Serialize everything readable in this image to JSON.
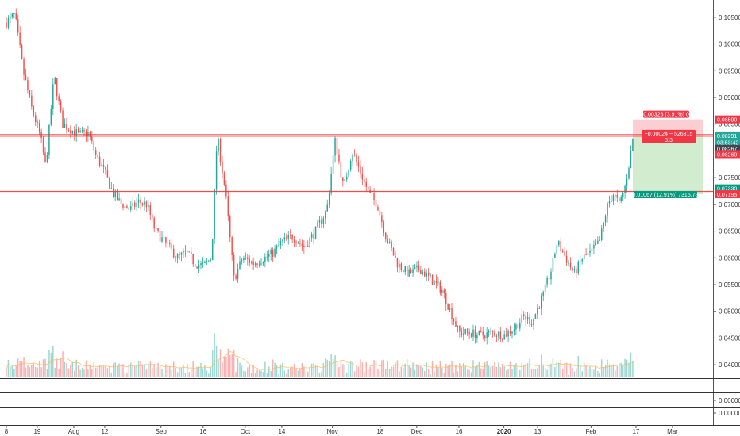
{
  "chart_data": {
    "type": "candlestick",
    "title": "",
    "xlabel": "",
    "ylabel": "",
    "ylim": [
      0.0375,
      0.1075
    ],
    "grid": false,
    "y_ticks": [
      "0.10500",
      "0.10000",
      "0.09500",
      "0.09000",
      "0.08500",
      "0.08000",
      "0.07500",
      "0.07000",
      "0.06500",
      "0.06000",
      "0.05500",
      "0.05000",
      "0.04500",
      "0.04000"
    ],
    "x_ticks": [
      {
        "label": "8",
        "date": "2019-07-08"
      },
      {
        "label": "19",
        "date": "2019-07-19"
      },
      {
        "label": "Aug",
        "date": "2019-08-01"
      },
      {
        "label": "12",
        "date": "2019-08-12"
      },
      {
        "label": "Sep",
        "date": "2019-09-01"
      },
      {
        "label": "16",
        "date": "2019-09-16"
      },
      {
        "label": "Oct",
        "date": "2019-10-01"
      },
      {
        "label": "14",
        "date": "2019-10-14"
      },
      {
        "label": "Nov",
        "date": "2019-11-01"
      },
      {
        "label": "18",
        "date": "2019-11-18"
      },
      {
        "label": "Dec",
        "date": "2019-12-01"
      },
      {
        "label": "16",
        "date": "2019-12-16"
      },
      {
        "label": "2020",
        "date": "2020-01-01"
      },
      {
        "label": "13",
        "date": "2020-01-13"
      },
      {
        "label": "Feb",
        "date": "2020-02-01"
      },
      {
        "label": "17",
        "date": "2020-02-17"
      },
      {
        "label": "Mar",
        "date": "2020-03-01"
      }
    ],
    "close_path": [
      [
        "2019-07-08",
        0.104
      ],
      [
        "2019-07-11",
        0.1055
      ],
      [
        "2019-07-14",
        0.095
      ],
      [
        "2019-07-17",
        0.088
      ],
      [
        "2019-07-20",
        0.083
      ],
      [
        "2019-07-22",
        0.077
      ],
      [
        "2019-07-25",
        0.094
      ],
      [
        "2019-07-28",
        0.085
      ],
      [
        "2019-07-31",
        0.084
      ],
      [
        "2019-08-03",
        0.083
      ],
      [
        "2019-08-06",
        0.0835
      ],
      [
        "2019-08-09",
        0.079
      ],
      [
        "2019-08-12",
        0.076
      ],
      [
        "2019-08-15",
        0.072
      ],
      [
        "2019-08-18",
        0.07
      ],
      [
        "2019-08-21",
        0.069
      ],
      [
        "2019-08-24",
        0.0705
      ],
      [
        "2019-08-27",
        0.07
      ],
      [
        "2019-08-30",
        0.065
      ],
      [
        "2019-09-03",
        0.0625
      ],
      [
        "2019-09-07",
        0.06
      ],
      [
        "2019-09-10",
        0.061
      ],
      [
        "2019-09-13",
        0.059
      ],
      [
        "2019-09-16",
        0.0585
      ],
      [
        "2019-09-19",
        0.06
      ],
      [
        "2019-09-21",
        0.083
      ],
      [
        "2019-09-24",
        0.072
      ],
      [
        "2019-09-27",
        0.056
      ],
      [
        "2019-09-30",
        0.06
      ],
      [
        "2019-10-04",
        0.059
      ],
      [
        "2019-10-08",
        0.06
      ],
      [
        "2019-10-11",
        0.061
      ],
      [
        "2019-10-14",
        0.063
      ],
      [
        "2019-10-18",
        0.064
      ],
      [
        "2019-10-22",
        0.062
      ],
      [
        "2019-10-26",
        0.065
      ],
      [
        "2019-10-30",
        0.069
      ],
      [
        "2019-11-02",
        0.082
      ],
      [
        "2019-11-05",
        0.073
      ],
      [
        "2019-11-08",
        0.08
      ],
      [
        "2019-11-11",
        0.076
      ],
      [
        "2019-11-14",
        0.072
      ],
      [
        "2019-11-17",
        0.07
      ],
      [
        "2019-11-20",
        0.064
      ],
      [
        "2019-11-24",
        0.059
      ],
      [
        "2019-11-28",
        0.057
      ],
      [
        "2019-12-02",
        0.058
      ],
      [
        "2019-12-06",
        0.056
      ],
      [
        "2019-12-10",
        0.054
      ],
      [
        "2019-12-13",
        0.05
      ],
      [
        "2019-12-16",
        0.046
      ],
      [
        "2019-12-20",
        0.046
      ],
      [
        "2019-12-24",
        0.0455
      ],
      [
        "2019-12-28",
        0.046
      ],
      [
        "2020-01-01",
        0.0455
      ],
      [
        "2020-01-05",
        0.047
      ],
      [
        "2020-01-08",
        0.049
      ],
      [
        "2020-01-11",
        0.048
      ],
      [
        "2020-01-15",
        0.053
      ],
      [
        "2020-01-18",
        0.058
      ],
      [
        "2020-01-20",
        0.063
      ],
      [
        "2020-01-23",
        0.06
      ],
      [
        "2020-01-26",
        0.057
      ],
      [
        "2020-01-29",
        0.06
      ],
      [
        "2020-02-01",
        0.061
      ],
      [
        "2020-02-04",
        0.063
      ],
      [
        "2020-02-07",
        0.07
      ],
      [
        "2020-02-09",
        0.072
      ],
      [
        "2020-02-11",
        0.07
      ],
      [
        "2020-02-13",
        0.073
      ],
      [
        "2020-02-15",
        0.079
      ],
      [
        "2020-02-16",
        0.0829
      ]
    ],
    "horizontal_lines": [
      0.0829,
      0.0723
    ],
    "position": {
      "stop": 0.0859,
      "entry": 0.0826,
      "target": 0.0719,
      "stop_label": "0.00323 (3.91%) 0",
      "entry_label_line1": "−0.00024 ~ 526315",
      "entry_label_line2": "3.3",
      "target_label": "0.01067 (12.91%) 7315.78"
    },
    "price_tags": [
      {
        "value": 0.0859,
        "label": "0.08590",
        "color": "#f23645"
      },
      {
        "value": 0.0829,
        "label": "0.08291",
        "color": "#26a69a"
      },
      {
        "value": 0.0816,
        "label": "03:53:42",
        "color": "#26a69a"
      },
      {
        "value": 0.0804,
        "label": "0.08267",
        "color": "#434651"
      },
      {
        "value": 0.0794,
        "label": "0.08260",
        "color": "#f23645"
      },
      {
        "value": 0.073,
        "label": "0.07330",
        "color": "#089981"
      },
      {
        "value": 0.0719,
        "label": "0.07195",
        "color": "#f23645"
      }
    ],
    "sub_ticks": [
      "0.00000",
      "0.00000"
    ],
    "colors": {
      "up": "#26a69a",
      "down": "#ef5350",
      "line": "#e53935"
    }
  }
}
